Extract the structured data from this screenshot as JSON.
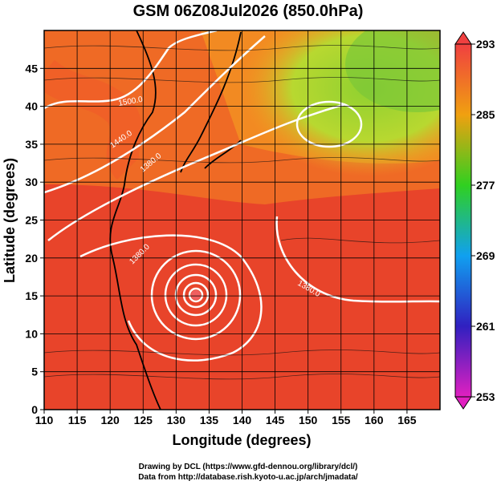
{
  "chart_data": {
    "type": "map",
    "title": "GSM 06Z08Jul2026 (850.0hPa)",
    "x_label": "Longitude (degrees)",
    "y_label": "Latitude  (degrees)",
    "xlim": [
      110,
      170
    ],
    "ylim": [
      0,
      50
    ],
    "xticks": [
      110,
      115,
      120,
      125,
      130,
      135,
      140,
      145,
      150,
      155,
      160,
      165
    ],
    "yticks": [
      0,
      5,
      10,
      15,
      20,
      25,
      30,
      35,
      40,
      45
    ],
    "grid": true,
    "colorbar": {
      "lim": [
        253,
        293
      ],
      "ticks": [
        253,
        261,
        269,
        277,
        285,
        293
      ]
    },
    "contour_labels": [
      "1500.0",
      "1440.0",
      "1380.0",
      "1380.0",
      "1380.0"
    ],
    "credits": [
      "Drawing by DCL (https://www.gfd-dennou.org/library/dcl/)",
      "Data from http://database.rish.kyoto-u.ac.jp/arch/jmadata/"
    ]
  }
}
